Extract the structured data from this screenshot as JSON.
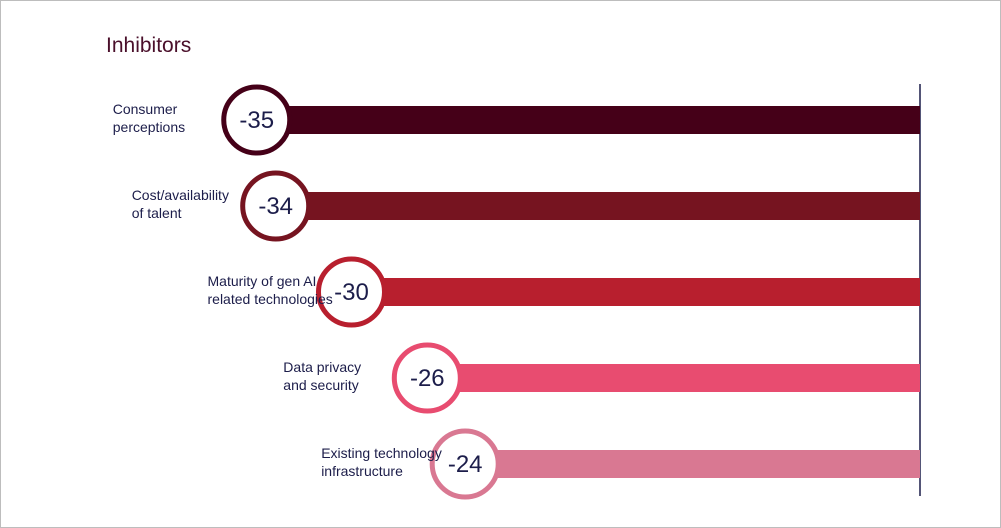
{
  "chart_data": {
    "type": "bar",
    "orientation": "horizontal",
    "title": "Inhibitors",
    "categories": [
      [
        "Consumer",
        "perceptions"
      ],
      [
        "Cost/availability",
        "of talent"
      ],
      [
        "Maturity of gen AI",
        "related technologies"
      ],
      [
        "Data privacy",
        "and security"
      ],
      [
        "Existing technology",
        "infrastructure"
      ]
    ],
    "values": [
      -35,
      -34,
      -30,
      -26,
      -24
    ],
    "value_labels": [
      "-35",
      "-34",
      "-30",
      "-26",
      "-24"
    ],
    "colors": [
      "#450018",
      "#761420",
      "#b81f2e",
      "#e84c70",
      "#d97892"
    ],
    "xlim": [
      -40,
      0
    ],
    "grid": false,
    "legend": "none"
  }
}
